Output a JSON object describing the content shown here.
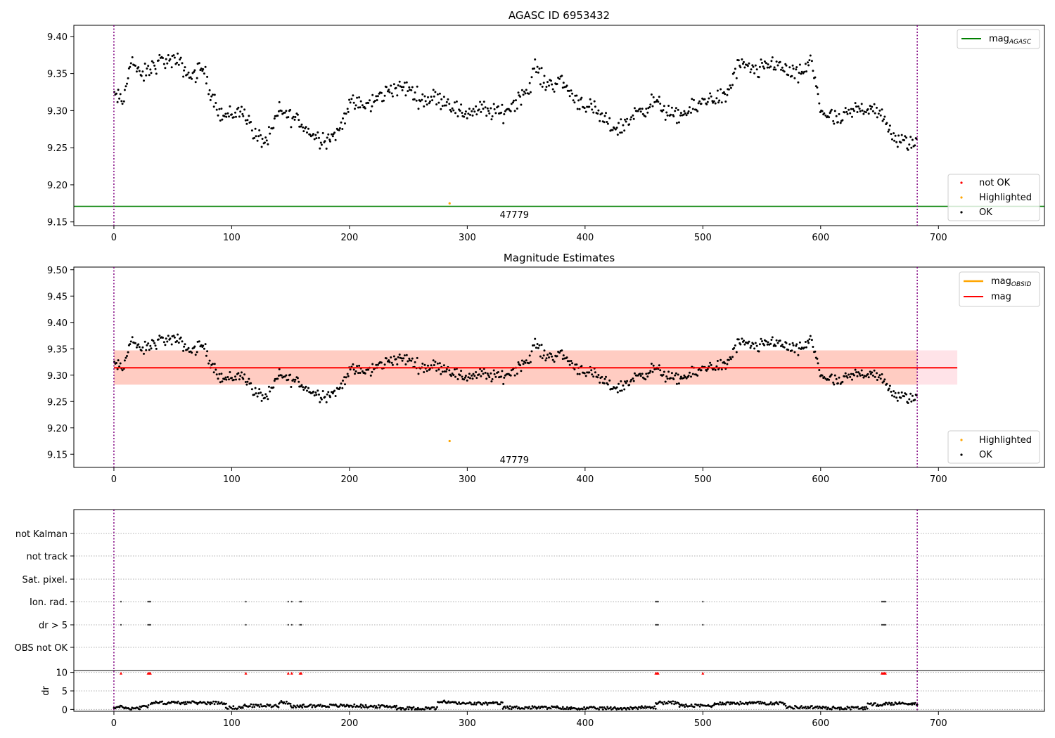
{
  "chart_data": [
    {
      "type": "scatter",
      "title": "AGASC ID 6953432",
      "xlim": [
        -34,
        790
      ],
      "ylim": [
        9.145,
        9.415
      ],
      "x_ticks": [
        0,
        100,
        200,
        300,
        400,
        500,
        600,
        700
      ],
      "y_ticks": [
        9.15,
        9.2,
        9.25,
        9.3,
        9.35,
        9.4
      ],
      "vlines": [
        0,
        682
      ],
      "hline": {
        "name": "mag_AGASC",
        "value": 9.171,
        "color": "#008000"
      },
      "legend_lines": [
        {
          "label": "mag",
          "sub": "AGASC",
          "color": "#008000"
        }
      ],
      "legend_markers": [
        {
          "label": "not OK",
          "color": "#ff0000"
        },
        {
          "label": "Highlighted",
          "color": "#ffa500"
        },
        {
          "label": "OK",
          "color": "#000000"
        }
      ],
      "annotation": {
        "text": "47779",
        "x": 340,
        "y": 9.16
      },
      "highlighted_point": {
        "x": 285,
        "y": 9.175
      }
    },
    {
      "type": "scatter",
      "title": "Magnitude Estimates",
      "xlim": [
        -34,
        790
      ],
      "ylim": [
        9.125,
        9.505
      ],
      "x_ticks": [
        0,
        100,
        200,
        300,
        400,
        500,
        600,
        700
      ],
      "y_ticks": [
        9.15,
        9.2,
        9.25,
        9.3,
        9.35,
        9.4,
        9.45,
        9.5
      ],
      "vlines": [
        0,
        682
      ],
      "mag_line": {
        "value": 9.314,
        "xrange": [
          0,
          716
        ],
        "color": "#ff0000"
      },
      "band": {
        "low": 9.282,
        "high": 9.347,
        "xrange": [
          0,
          716
        ]
      },
      "legend_lines": [
        {
          "label": "mag",
          "sub": "OBSID",
          "color": "#ffa500"
        },
        {
          "label": "mag",
          "sub": "",
          "color": "#ff0000"
        }
      ],
      "legend_markers": [
        {
          "label": "Highlighted",
          "color": "#ffa500"
        },
        {
          "label": "OK",
          "color": "#000000"
        }
      ],
      "annotation": {
        "text": "47779",
        "x": 340,
        "y": 9.14
      },
      "highlighted_point": {
        "x": 285,
        "y": 9.175
      }
    },
    {
      "type": "scatter",
      "categories": [
        "OBS not OK",
        "dr > 5",
        "Ion. rad.",
        "Sat. pixel.",
        "not track",
        "not Kalman"
      ],
      "flag_points": [
        {
          "category": "Ion. rad.",
          "x": [
            6,
            29,
            30,
            31,
            112,
            148,
            151,
            158,
            159,
            460,
            461,
            462,
            500,
            652,
            653,
            654,
            655
          ]
        },
        {
          "category": "dr > 5",
          "x": [
            6,
            29,
            30,
            31,
            112,
            148,
            151,
            158,
            159,
            460,
            461,
            462,
            500,
            652,
            653,
            654,
            655
          ]
        }
      ]
    },
    {
      "type": "scatter",
      "ylabel": "dr",
      "xlim": [
        -34,
        790
      ],
      "ylim": [
        -0.5,
        10.5
      ],
      "x_ticks": [
        0,
        100,
        200,
        300,
        400,
        500,
        600,
        700
      ],
      "y_ticks": [
        0,
        5,
        10
      ],
      "vlines": [
        0,
        682
      ],
      "red_markers_x": [
        6,
        29,
        30,
        31,
        112,
        148,
        151,
        158,
        159,
        460,
        461,
        462,
        500,
        652,
        653,
        654,
        655
      ],
      "red_markers_y": 9.8
    }
  ],
  "colors": {
    "ok": "#000000",
    "not_ok": "#ff0000",
    "highlighted": "#ffa500",
    "agasc_line": "#008000",
    "mag_line": "#ff0000",
    "vline": "#800080"
  }
}
